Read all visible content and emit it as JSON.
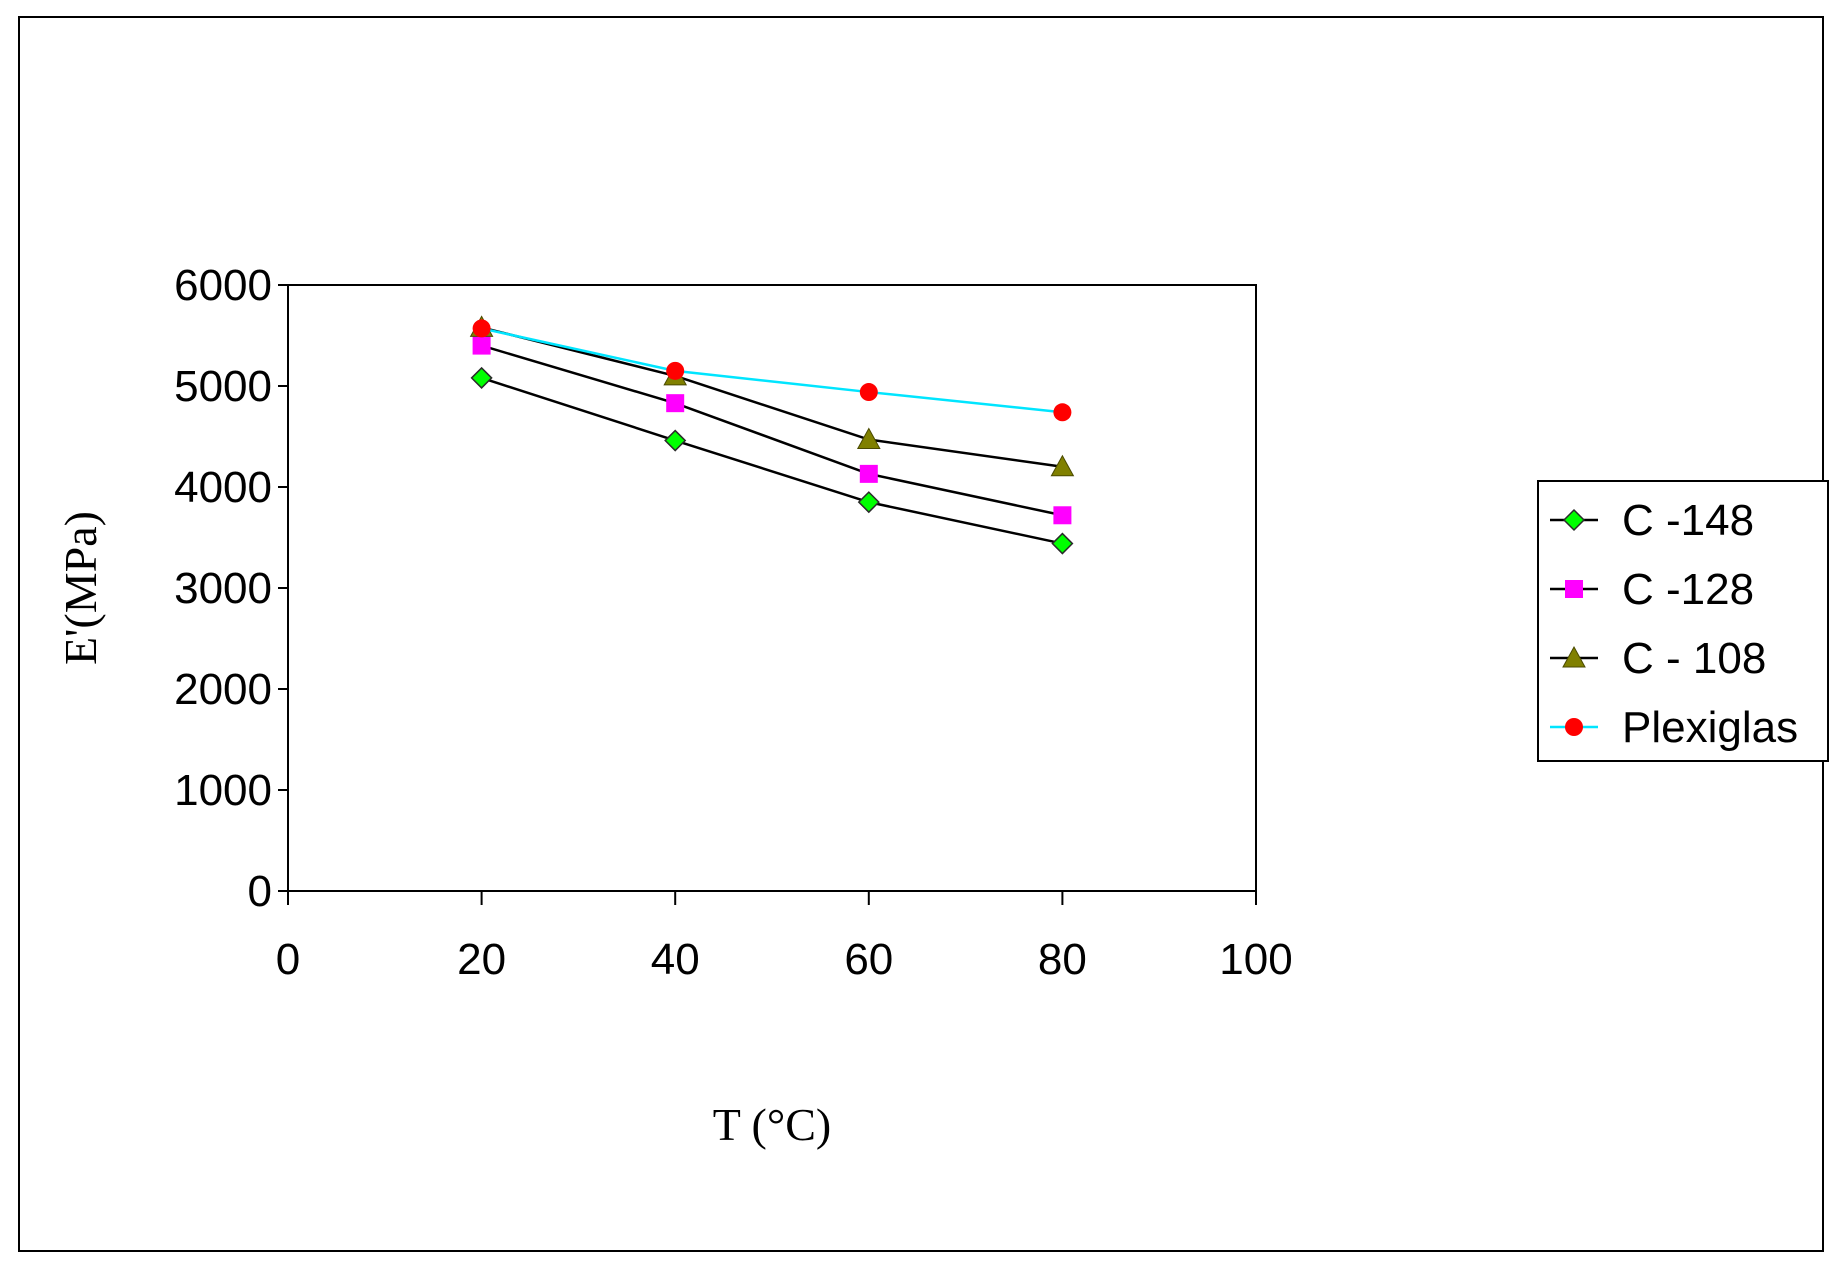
{
  "chart_data": {
    "type": "line",
    "title": "",
    "xlabel": "T (°C)",
    "ylabel": "E'(MPa)",
    "xlim": [
      0,
      100
    ],
    "ylim": [
      0,
      6000
    ],
    "xticks": [
      0,
      20,
      40,
      60,
      80,
      100
    ],
    "yticks": [
      0,
      1000,
      2000,
      3000,
      4000,
      5000,
      6000
    ],
    "grid": false,
    "legend_position": "right",
    "x": [
      20,
      40,
      60,
      80
    ],
    "series": [
      {
        "name": "C -148",
        "values": [
          5080,
          4460,
          3850,
          3440
        ],
        "color": "#00ff00",
        "line_color": "#000000",
        "marker": "diamond"
      },
      {
        "name": "C -128",
        "values": [
          5400,
          4830,
          4130,
          3720
        ],
        "color": "#ff00ff",
        "line_color": "#000000",
        "marker": "square"
      },
      {
        "name": "C - 108",
        "values": [
          5580,
          5100,
          4470,
          4200
        ],
        "color": "#808000",
        "line_color": "#000000",
        "marker": "triangle"
      },
      {
        "name": "Plexiglas",
        "values": [
          5570,
          5150,
          4940,
          4740
        ],
        "color": "#ff0000",
        "line_color": "#00e5ff",
        "marker": "circle"
      }
    ]
  }
}
